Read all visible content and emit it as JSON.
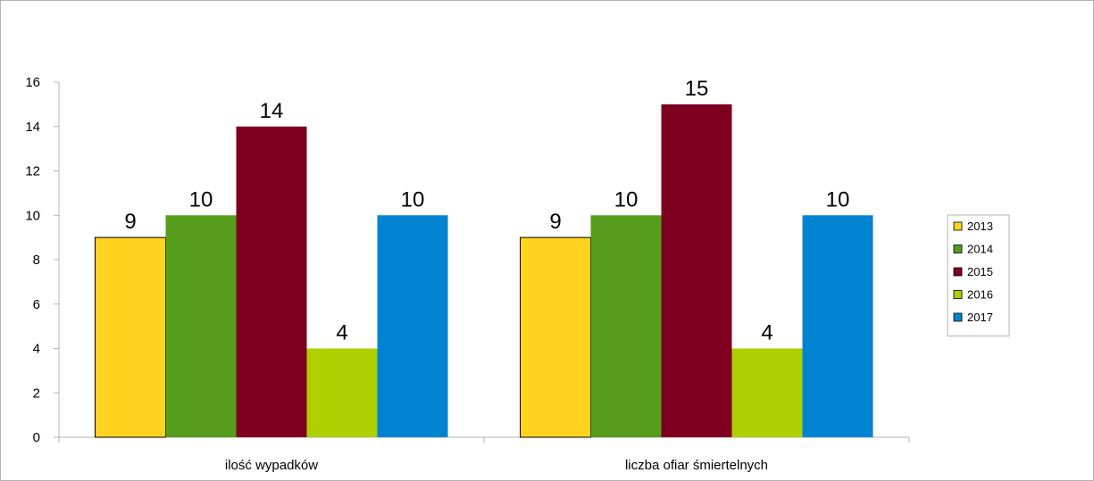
{
  "chart_data": {
    "type": "bar",
    "categories": [
      "ilość wypadków",
      "liczba ofiar śmiertelnych"
    ],
    "series": [
      {
        "name": "2013",
        "values": [
          9,
          9
        ],
        "color": "#ffd320"
      },
      {
        "name": "2014",
        "values": [
          10,
          10
        ],
        "color": "#579d1c"
      },
      {
        "name": "2015",
        "values": [
          14,
          15
        ],
        "color": "#7e0021"
      },
      {
        "name": "2016",
        "values": [
          4,
          4
        ],
        "color": "#aecf00"
      },
      {
        "name": "2017",
        "values": [
          10,
          10
        ],
        "color": "#0084d1"
      }
    ],
    "ylim": [
      0,
      16
    ],
    "yticks": [
      0,
      2,
      4,
      6,
      8,
      10,
      12,
      14,
      16
    ],
    "grid": false,
    "legend": "right",
    "data_labels": true
  }
}
